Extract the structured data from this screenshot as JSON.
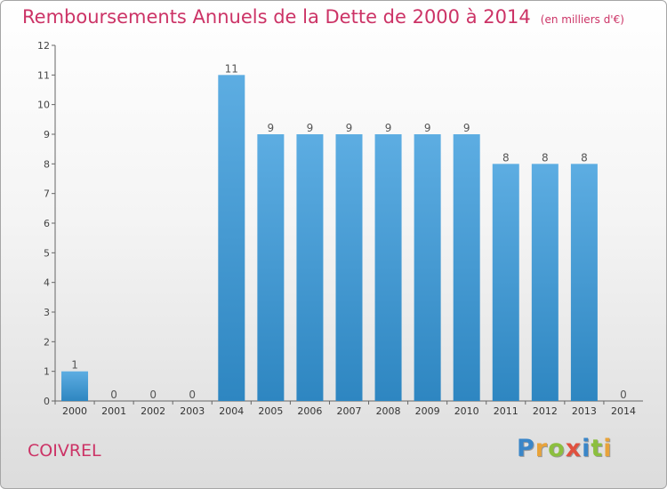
{
  "header": {
    "title": "Remboursements Annuels de la Dette de 2000 à 2014",
    "unit": "(en milliers d'€)"
  },
  "footer": {
    "commune": "COIVREL",
    "brand": "Proxiti"
  },
  "colors": {
    "title": "#cc3366",
    "bar_light": "#5dade2",
    "bar_dark": "#2e86c1"
  },
  "chart_data": {
    "type": "bar",
    "categories": [
      "2000",
      "2001",
      "2002",
      "2003",
      "2004",
      "2005",
      "2006",
      "2007",
      "2008",
      "2009",
      "2010",
      "2011",
      "2012",
      "2013",
      "2014"
    ],
    "values": [
      1,
      0,
      0,
      0,
      11,
      9,
      9,
      9,
      9,
      9,
      9,
      8,
      8,
      8,
      0
    ],
    "title": "Remboursements Annuels de la Dette de 2000 à 2014",
    "xlabel": "",
    "ylabel": "",
    "ylim": [
      0,
      12
    ],
    "yticks": [
      0,
      1,
      2,
      3,
      4,
      5,
      6,
      7,
      8,
      9,
      10,
      11,
      12
    ],
    "grid": false
  }
}
